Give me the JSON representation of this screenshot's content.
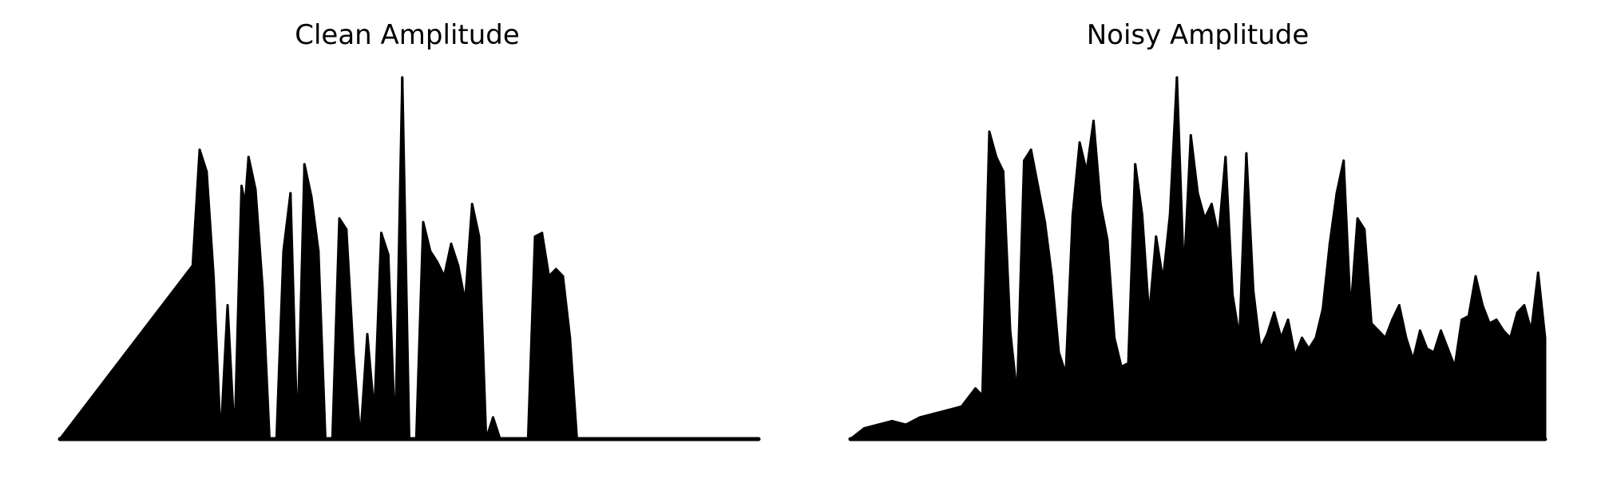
{
  "chart_data": [
    {
      "type": "area",
      "title": "Clean Amplitude",
      "xlabel": "",
      "ylabel": "",
      "axes_visible": false,
      "grid": false,
      "ylim": [
        0,
        1
      ],
      "color": "#000000",
      "x": [
        0.0,
        0.19,
        0.2,
        0.21,
        0.22,
        0.23,
        0.24,
        0.25,
        0.26,
        0.265,
        0.27,
        0.28,
        0.29,
        0.3,
        0.31,
        0.32,
        0.33,
        0.34,
        0.35,
        0.36,
        0.37,
        0.38,
        0.39,
        0.4,
        0.41,
        0.42,
        0.43,
        0.44,
        0.45,
        0.46,
        0.47,
        0.48,
        0.49,
        0.5,
        0.51,
        0.52,
        0.53,
        0.54,
        0.55,
        0.56,
        0.57,
        0.58,
        0.59,
        0.6,
        0.61,
        0.62,
        0.63,
        0.64,
        0.65,
        0.66,
        0.67,
        0.68,
        0.69,
        0.7,
        0.71,
        0.72,
        0.73,
        0.74,
        0.75,
        0.76,
        0.77,
        0.78,
        0.79,
        0.8,
        0.81,
        0.82,
        0.83,
        0.84,
        0.85,
        0.86,
        0.87,
        0.88,
        0.89,
        0.9,
        1.0
      ],
      "values": [
        0.0,
        0.48,
        0.8,
        0.74,
        0.45,
        0.0,
        0.37,
        0.0,
        0.7,
        0.65,
        0.78,
        0.69,
        0.42,
        0.0,
        0.0,
        0.52,
        0.68,
        0.0,
        0.76,
        0.67,
        0.52,
        0.0,
        0.0,
        0.61,
        0.58,
        0.24,
        0.0,
        0.29,
        0.07,
        0.57,
        0.51,
        0.0,
        1.0,
        0.0,
        0.0,
        0.6,
        0.52,
        0.49,
        0.45,
        0.54,
        0.48,
        0.38,
        0.65,
        0.56,
        0.0,
        0.06,
        0.0,
        0.0,
        0.0,
        0.0,
        0.0,
        0.56,
        0.57,
        0.45,
        0.47,
        0.45,
        0.28,
        0.0,
        0.0,
        0.0,
        0.0,
        0.0,
        0.0,
        0.0,
        0.0,
        0.0,
        0.0,
        0.0,
        0.0,
        0.0,
        0.0,
        0.0,
        0.0,
        0.0,
        0.0
      ]
    },
    {
      "type": "area",
      "title": "Noisy Amplitude",
      "xlabel": "",
      "ylabel": "",
      "axes_visible": false,
      "grid": false,
      "ylim": [
        0,
        1
      ],
      "color": "#000000",
      "x": [
        0.0,
        0.02,
        0.04,
        0.06,
        0.08,
        0.1,
        0.12,
        0.14,
        0.16,
        0.18,
        0.19,
        0.2,
        0.21,
        0.22,
        0.23,
        0.24,
        0.25,
        0.26,
        0.27,
        0.28,
        0.29,
        0.3,
        0.31,
        0.32,
        0.33,
        0.34,
        0.35,
        0.36,
        0.37,
        0.38,
        0.39,
        0.4,
        0.41,
        0.42,
        0.43,
        0.44,
        0.45,
        0.46,
        0.47,
        0.48,
        0.49,
        0.5,
        0.51,
        0.52,
        0.53,
        0.54,
        0.55,
        0.56,
        0.57,
        0.58,
        0.59,
        0.6,
        0.61,
        0.62,
        0.63,
        0.64,
        0.65,
        0.66,
        0.67,
        0.68,
        0.69,
        0.7,
        0.71,
        0.72,
        0.73,
        0.74,
        0.75,
        0.76,
        0.77,
        0.78,
        0.79,
        0.8,
        0.81,
        0.82,
        0.83,
        0.84,
        0.85,
        0.86,
        0.87,
        0.88,
        0.89,
        0.9,
        0.91,
        0.92,
        0.93,
        0.94,
        0.95,
        0.96,
        0.97,
        0.98,
        0.99,
        1.0
      ],
      "values": [
        0.0,
        0.03,
        0.04,
        0.05,
        0.04,
        0.06,
        0.07,
        0.08,
        0.09,
        0.14,
        0.12,
        0.85,
        0.78,
        0.74,
        0.3,
        0.12,
        0.77,
        0.8,
        0.7,
        0.6,
        0.45,
        0.24,
        0.18,
        0.62,
        0.82,
        0.74,
        0.88,
        0.65,
        0.55,
        0.28,
        0.2,
        0.21,
        0.76,
        0.62,
        0.34,
        0.56,
        0.44,
        0.62,
        1.0,
        0.45,
        0.84,
        0.68,
        0.61,
        0.65,
        0.56,
        0.78,
        0.4,
        0.28,
        0.79,
        0.41,
        0.25,
        0.29,
        0.35,
        0.28,
        0.33,
        0.23,
        0.28,
        0.25,
        0.28,
        0.36,
        0.54,
        0.68,
        0.77,
        0.35,
        0.61,
        0.58,
        0.32,
        0.3,
        0.28,
        0.33,
        0.37,
        0.28,
        0.22,
        0.3,
        0.25,
        0.24,
        0.3,
        0.25,
        0.2,
        0.33,
        0.34,
        0.45,
        0.37,
        0.32,
        0.33,
        0.3,
        0.28,
        0.35,
        0.37,
        0.3,
        0.46,
        0.28
      ]
    }
  ]
}
